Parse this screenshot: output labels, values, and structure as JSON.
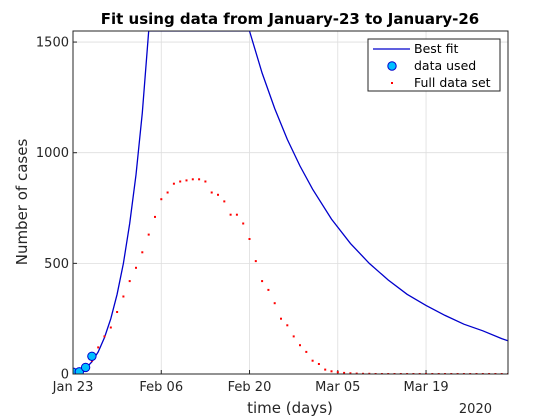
{
  "chart_data": {
    "type": "line",
    "title": "Fit using data from January-23 to January-26",
    "xlabel": "time (days)",
    "ylabel": "Number of cases",
    "x_domain": [
      "2020-01-23",
      "2020-04-01"
    ],
    "ylim": [
      0,
      1550
    ],
    "x_ticks": [
      {
        "date": "2020-01-23",
        "label": "Jan 23"
      },
      {
        "date": "2020-02-06",
        "label": "Feb 06"
      },
      {
        "date": "2020-02-20",
        "label": "Feb 20"
      },
      {
        "date": "2020-03-05",
        "label": "Mar 05"
      },
      {
        "date": "2020-03-19",
        "label": "Mar 19"
      }
    ],
    "x_secondary_label": "2020",
    "y_ticks": [
      {
        "value": 0,
        "label": "0"
      },
      {
        "value": 500,
        "label": "500"
      },
      {
        "value": 1000,
        "label": "1000"
      },
      {
        "value": 1500,
        "label": "1500"
      }
    ],
    "grid": true,
    "legend_placement": "top-right",
    "series": [
      {
        "name": "Best fit",
        "style": "line",
        "color": "#0000cc",
        "x": [
          "2020-01-23",
          "2020-01-24",
          "2020-01-25",
          "2020-01-26",
          "2020-01-27",
          "2020-01-28",
          "2020-01-29",
          "2020-01-30",
          "2020-01-31",
          "2020-02-01",
          "2020-02-02",
          "2020-02-03",
          "2020-02-04",
          "2020-02-20",
          "2020-02-22",
          "2020-02-24",
          "2020-02-26",
          "2020-02-28",
          "2020-03-01",
          "2020-03-04",
          "2020-03-07",
          "2020-03-10",
          "2020-03-13",
          "2020-03-16",
          "2020-03-19",
          "2020-03-22",
          "2020-03-25",
          "2020-03-28",
          "2020-03-31",
          "2020-04-01"
        ],
        "y": [
          5,
          10,
          25,
          55,
          100,
          165,
          250,
          360,
          500,
          680,
          900,
          1180,
          1550,
          1550,
          1360,
          1200,
          1060,
          940,
          835,
          700,
          590,
          500,
          425,
          360,
          310,
          265,
          225,
          195,
          160,
          150
        ]
      },
      {
        "name": "data used",
        "style": "marker",
        "color": "#00bfff",
        "edge_color": "#0000cc",
        "x": [
          "2020-01-23",
          "2020-01-24",
          "2020-01-25",
          "2020-01-26"
        ],
        "y": [
          8,
          10,
          30,
          80
        ]
      },
      {
        "name": "Full data set",
        "style": "dots",
        "color": "#ff0000",
        "x": [
          "2020-01-23",
          "2020-01-24",
          "2020-01-25",
          "2020-01-26",
          "2020-01-27",
          "2020-01-28",
          "2020-01-29",
          "2020-01-30",
          "2020-01-31",
          "2020-02-01",
          "2020-02-02",
          "2020-02-03",
          "2020-02-04",
          "2020-02-05",
          "2020-02-06",
          "2020-02-07",
          "2020-02-08",
          "2020-02-09",
          "2020-02-10",
          "2020-02-11",
          "2020-02-12",
          "2020-02-13",
          "2020-02-14",
          "2020-02-15",
          "2020-02-16",
          "2020-02-17",
          "2020-02-18",
          "2020-02-19",
          "2020-02-20",
          "2020-02-21",
          "2020-02-22",
          "2020-02-23",
          "2020-02-24",
          "2020-02-25",
          "2020-02-26",
          "2020-02-27",
          "2020-02-28",
          "2020-02-29",
          "2020-03-01",
          "2020-03-02",
          "2020-03-03",
          "2020-03-04",
          "2020-03-05",
          "2020-03-06",
          "2020-03-07",
          "2020-03-08",
          "2020-03-09",
          "2020-03-10",
          "2020-03-11",
          "2020-03-12",
          "2020-03-13",
          "2020-03-14",
          "2020-03-15",
          "2020-03-16",
          "2020-03-17",
          "2020-03-18",
          "2020-03-19",
          "2020-03-20",
          "2020-03-21",
          "2020-03-22",
          "2020-03-23",
          "2020-03-24",
          "2020-03-25",
          "2020-03-26",
          "2020-03-27",
          "2020-03-28",
          "2020-03-29",
          "2020-03-30",
          "2020-03-31",
          "2020-04-01"
        ],
        "y": [
          5,
          12,
          30,
          60,
          120,
          170,
          210,
          280,
          350,
          420,
          480,
          550,
          630,
          710,
          790,
          820,
          860,
          870,
          875,
          880,
          880,
          870,
          820,
          810,
          780,
          720,
          720,
          680,
          610,
          510,
          420,
          380,
          320,
          250,
          220,
          170,
          130,
          100,
          60,
          45,
          20,
          12,
          8,
          5,
          3,
          2,
          1,
          1,
          0,
          0,
          0,
          0,
          0,
          0,
          0,
          0,
          0,
          0,
          0,
          0,
          0,
          0,
          0,
          0,
          0,
          0,
          0,
          0,
          0,
          0
        ]
      }
    ]
  }
}
